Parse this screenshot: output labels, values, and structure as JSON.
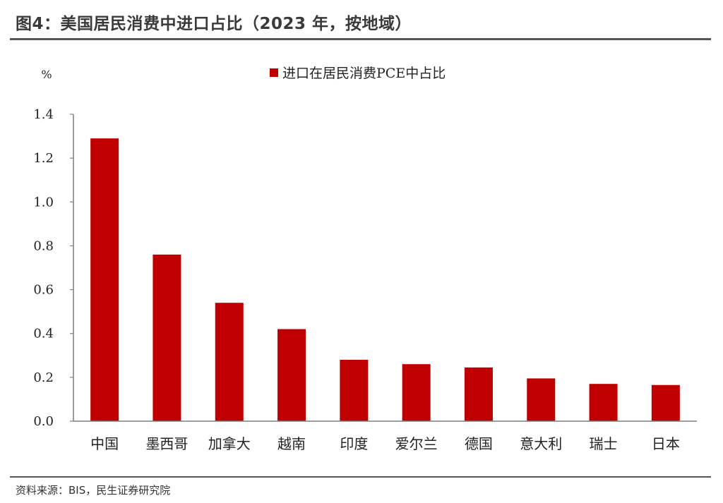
{
  "figure": {
    "title": "图4：美国居民消费中进口占比（2023 年，按地域）",
    "source": "资料来源：BIS，民生证券研究院"
  },
  "colors": {
    "bar": "#c00000",
    "axis": "#7f7f7f",
    "rule": "#555555"
  },
  "chart_data": {
    "type": "bar",
    "unit_label": "%",
    "categories": [
      "中国",
      "墨西哥",
      "加拿大",
      "越南",
      "印度",
      "爱尔兰",
      "德国",
      "意大利",
      "瑞士",
      "日本"
    ],
    "series": [
      {
        "name": "进口在居民消费PCE中占比",
        "values": [
          1.29,
          0.76,
          0.54,
          0.42,
          0.28,
          0.26,
          0.245,
          0.195,
          0.17,
          0.165
        ]
      }
    ],
    "y_ticks": [
      "0.0",
      "0.2",
      "0.4",
      "0.6",
      "0.8",
      "1.0",
      "1.2",
      "1.4"
    ],
    "ylim": [
      0,
      1.4
    ],
    "grid": false,
    "legend_position": "top-center"
  }
}
